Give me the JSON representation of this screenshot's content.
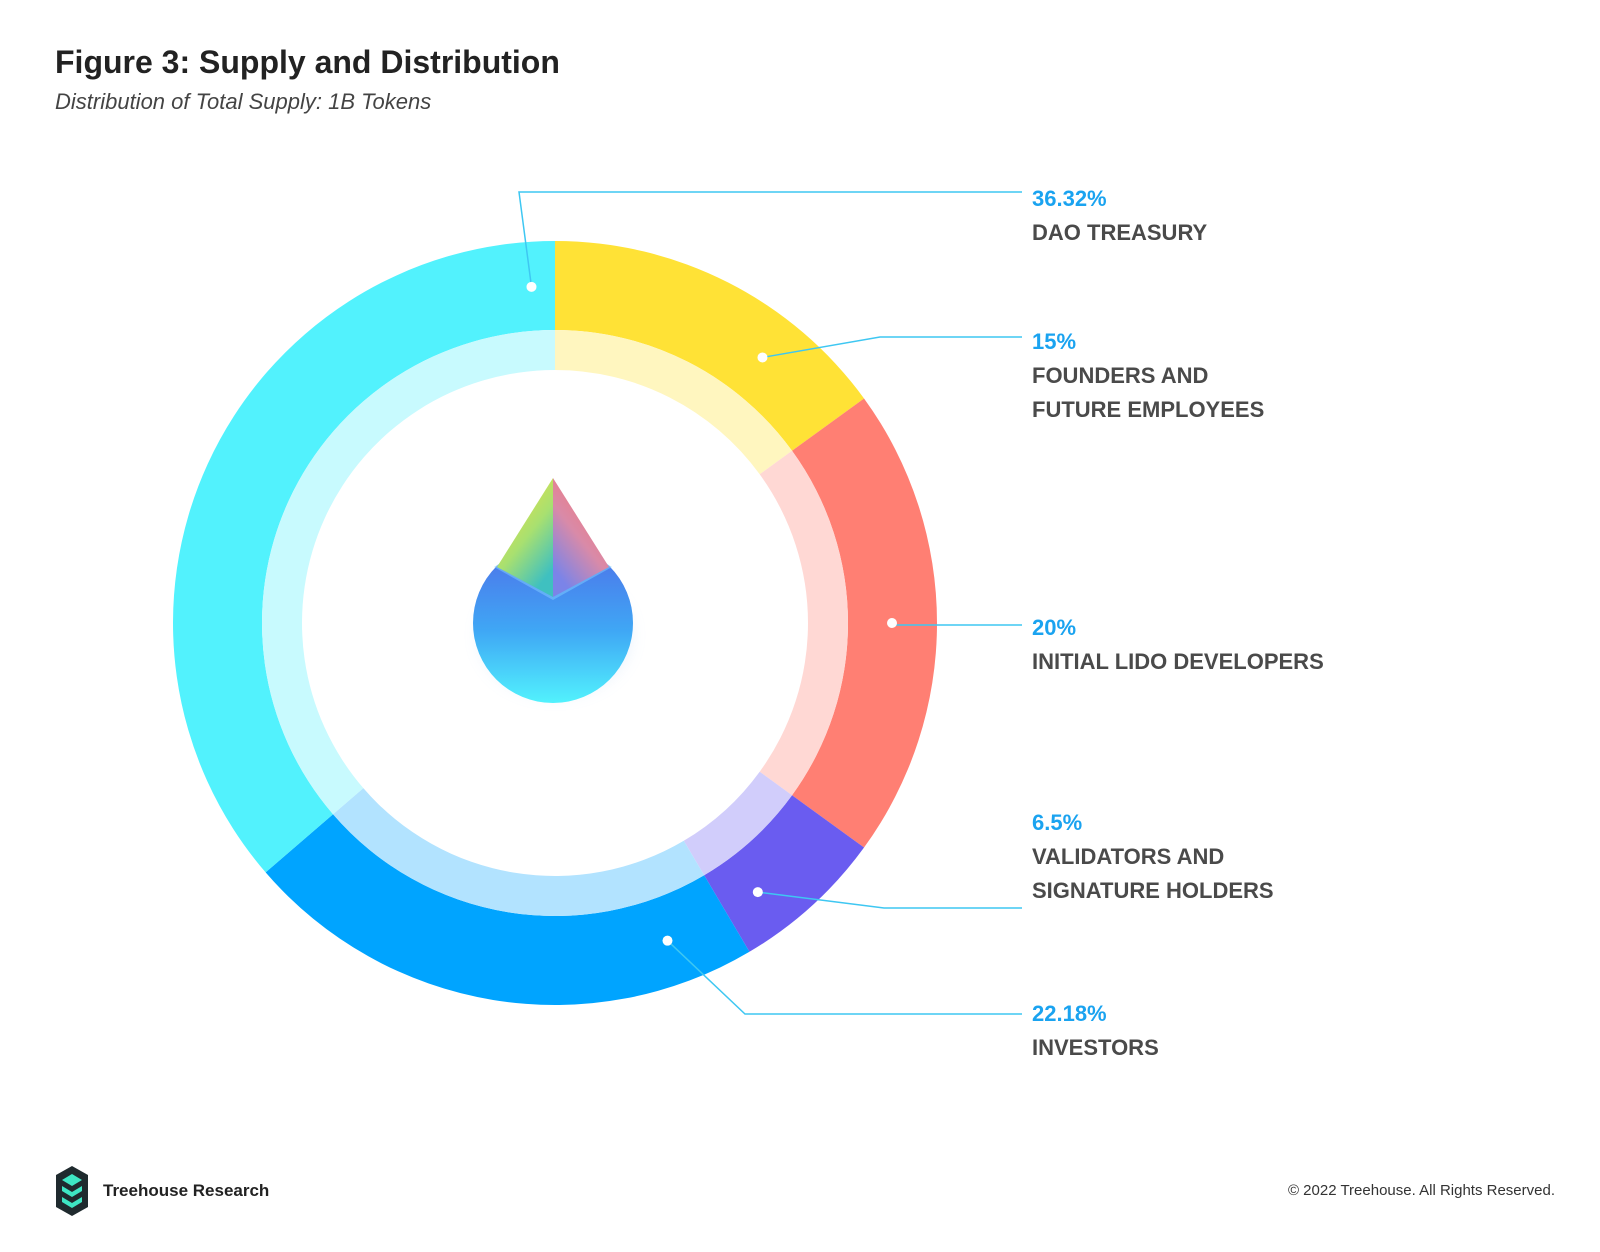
{
  "header": {
    "title": "Figure 3: Supply and Distribution",
    "subtitle": "Distribution of Total Supply: 1B Tokens"
  },
  "chart_data": {
    "type": "pie",
    "title": "Figure 3: Supply and Distribution",
    "subtitle": "Distribution of Total Supply: 1B Tokens",
    "categories": [
      "DAO TREASURY",
      "FOUNDERS AND FUTURE EMPLOYEES",
      "INITIAL LIDO DEVELOPERS",
      "VALIDATORS AND SIGNATURE HOLDERS",
      "INVESTORS"
    ],
    "values": [
      36.32,
      15,
      20,
      6.5,
      22.18
    ],
    "value_labels": [
      "36.32%",
      "15%",
      "20%",
      "6.5%",
      "22.18%"
    ],
    "display_names": [
      "DAO TREASURY",
      "FOUNDERS AND\nFUTURE EMPLOYEES",
      "INITIAL LIDO DEVELOPERS",
      "VALIDATORS AND\nSIGNATURE HOLDERS",
      "INVESTORS"
    ],
    "colors": [
      "#52f2fd",
      "#ffe236",
      "#ff7f73",
      "#6a5cf0",
      "#00a4ff"
    ],
    "inner_colors": [
      "#c8fafe",
      "#fff6bf",
      "#ffd8d4",
      "#d1cdfb",
      "#b2e3ff"
    ],
    "order": "clockwise starting at top: FOUNDERS, LIDO DEVELOPERS, VALIDATORS, INVESTORS, DAO TREASURY",
    "legend": "right"
  },
  "colors": {
    "percent_text": "#1aa3f0",
    "label_text": "#4a4a4a",
    "leader_line": "#3ec7f2"
  },
  "footer": {
    "brand": "Treehouse Research",
    "copyright": "© 2022 Treehouse. All Rights Reserved."
  },
  "icons": {
    "center": "lido-drop-icon",
    "brand": "treehouse-logo-icon"
  }
}
